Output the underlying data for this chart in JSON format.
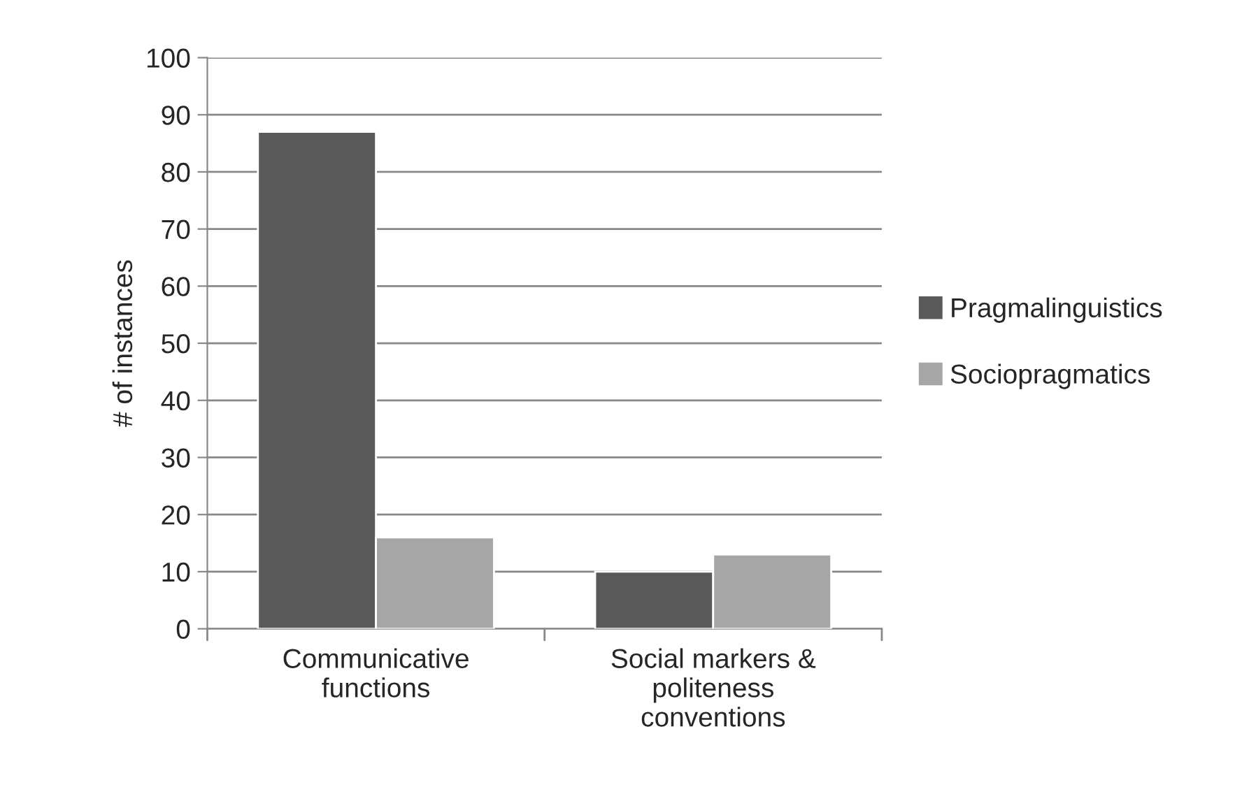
{
  "chart_data": {
    "type": "bar",
    "ylabel": "# of instances",
    "categories": [
      "Communicative\nfunctions",
      "Social markers &\npoliteness\nconventions"
    ],
    "series": [
      {
        "name": "Pragmalinguistics",
        "color": "#595959",
        "values": [
          87,
          10
        ]
      },
      {
        "name": "Sociopragmatics",
        "color": "#a6a6a6",
        "values": [
          16,
          13
        ]
      }
    ],
    "ylim": [
      0,
      100
    ],
    "yticks": [
      0,
      10,
      20,
      30,
      40,
      50,
      60,
      70,
      80,
      90,
      100
    ],
    "grid": "y",
    "legend": "right"
  }
}
